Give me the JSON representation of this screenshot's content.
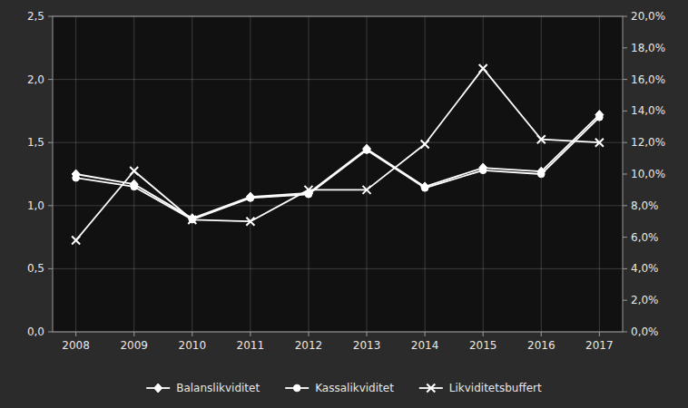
{
  "chart_data": {
    "type": "line",
    "x": [
      2008,
      2009,
      2010,
      2011,
      2012,
      2013,
      2014,
      2015,
      2016,
      2017
    ],
    "xlim": [
      2007.6,
      2017.4
    ],
    "xticks": [
      2008,
      2009,
      2010,
      2011,
      2012,
      2013,
      2014,
      2015,
      2016,
      2017
    ],
    "ylim": [
      0.0,
      2.5
    ],
    "yticks": [
      {
        "value": 0.0,
        "label": "0,0"
      },
      {
        "value": 0.5,
        "label": "0,5"
      },
      {
        "value": 1.0,
        "label": "1,0"
      },
      {
        "value": 1.5,
        "label": "1,5"
      },
      {
        "value": 2.0,
        "label": "2,0"
      },
      {
        "value": 2.5,
        "label": "2,5"
      }
    ],
    "y2lim": [
      0.0,
      0.2
    ],
    "y2ticks": [
      {
        "value": 0.0,
        "label": "0,0%"
      },
      {
        "value": 0.02,
        "label": "2,0%"
      },
      {
        "value": 0.04,
        "label": "4,0%"
      },
      {
        "value": 0.06,
        "label": "6,0%"
      },
      {
        "value": 0.08,
        "label": "8,0%"
      },
      {
        "value": 0.1,
        "label": "10,0%"
      },
      {
        "value": 0.12,
        "label": "12,0%"
      },
      {
        "value": 0.14,
        "label": "14,0%"
      },
      {
        "value": 0.16,
        "label": "16,0%"
      },
      {
        "value": 0.18,
        "label": "18,0%"
      },
      {
        "value": 0.2,
        "label": "20,0%"
      }
    ],
    "grid": true,
    "legend": "bottom",
    "series": [
      {
        "name": "Balanslikviditet",
        "color": "#ffffff",
        "marker": "diamond",
        "values": [
          1.25,
          1.17,
          0.9,
          1.07,
          1.1,
          1.45,
          1.15,
          1.3,
          1.27,
          1.72
        ]
      },
      {
        "name": "Kassalikviditet",
        "color": "#ffffff",
        "marker": "circle",
        "values": [
          1.22,
          1.15,
          0.89,
          1.06,
          1.09,
          1.44,
          1.14,
          1.28,
          1.25,
          1.7
        ]
      },
      {
        "name": "Likviditetsbuffert",
        "color": "#ffffff",
        "marker": "x",
        "axis": "y2",
        "values": [
          0.058,
          0.102,
          0.071,
          0.07,
          0.09,
          0.09,
          0.119,
          0.167,
          0.122,
          0.12
        ]
      }
    ]
  }
}
